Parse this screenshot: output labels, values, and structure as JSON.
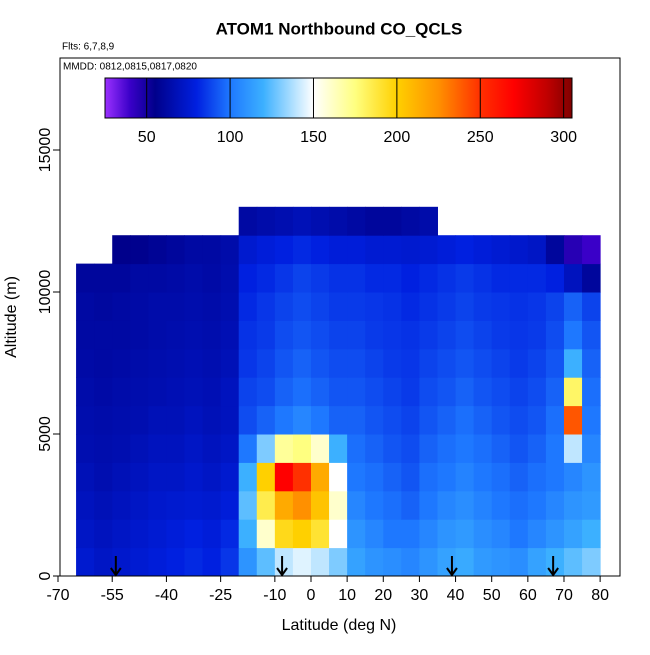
{
  "chart_data": {
    "type": "heatmap",
    "title": "ATOM1 Northbound CO_QCLS",
    "subtitle": "Flts: 6,7,8,9",
    "annotation": "MMDD: 0812,0815,0817,0820",
    "x_label": "Latitude (deg N)",
    "y_label": "Altitude (m)",
    "xlim": [
      -70,
      85.5
    ],
    "ylim": [
      0,
      18240
    ],
    "xticks": [
      -70,
      -55,
      -40,
      -25,
      -10,
      0,
      10,
      20,
      30,
      40,
      50,
      60,
      70,
      80
    ],
    "yticks": [
      0,
      5000,
      10000,
      15000
    ],
    "x_edges": [
      -65,
      -60,
      -55,
      -50,
      -45,
      -40,
      -35,
      -30,
      -25,
      -20,
      -15,
      -10,
      -5,
      0,
      5,
      10,
      15,
      20,
      25,
      30,
      35,
      40,
      45,
      50,
      55,
      60,
      65,
      70,
      75,
      80
    ],
    "y_edges": [
      0,
      1000,
      2000,
      3000,
      4000,
      5000,
      6000,
      7000,
      8000,
      9000,
      10000,
      11000,
      12000,
      13000
    ],
    "values": [
      [
        75,
        72,
        74,
        76,
        78,
        80,
        82,
        80,
        85,
        110,
        125,
        140,
        145,
        140,
        130,
        115,
        110,
        108,
        105,
        110,
        115,
        118,
        112,
        110,
        108,
        115,
        120,
        125,
        130
      ],
      [
        72,
        70,
        72,
        74,
        76,
        78,
        80,
        78,
        82,
        120,
        160,
        195,
        200,
        190,
        150,
        110,
        105,
        100,
        100,
        105,
        110,
        112,
        108,
        105,
        100,
        105,
        110,
        115,
        120
      ],
      [
        70,
        68,
        70,
        72,
        74,
        75,
        76,
        75,
        78,
        125,
        185,
        215,
        225,
        205,
        160,
        105,
        100,
        98,
        95,
        100,
        105,
        108,
        104,
        100,
        98,
        100,
        105,
        110,
        112
      ],
      [
        68,
        66,
        68,
        70,
        72,
        72,
        74,
        72,
        75,
        120,
        200,
        270,
        250,
        215,
        150,
        100,
        98,
        95,
        92,
        98,
        100,
        104,
        100,
        98,
        95,
        98,
        100,
        105,
        110
      ],
      [
        66,
        65,
        66,
        68,
        70,
        70,
        72,
        70,
        72,
        100,
        130,
        170,
        175,
        160,
        120,
        98,
        95,
        92,
        90,
        95,
        98,
        100,
        98,
        95,
        92,
        95,
        100,
        140,
        105
      ],
      [
        65,
        64,
        65,
        66,
        68,
        68,
        70,
        68,
        70,
        90,
        95,
        100,
        105,
        100,
        95,
        95,
        92,
        90,
        88,
        92,
        95,
        98,
        95,
        92,
        90,
        92,
        98,
        240,
        100
      ],
      [
        64,
        63,
        64,
        65,
        66,
        67,
        68,
        67,
        70,
        88,
        90,
        95,
        98,
        95,
        92,
        92,
        90,
        88,
        86,
        90,
        92,
        95,
        92,
        90,
        88,
        90,
        95,
        180,
        98
      ],
      [
        63,
        62,
        63,
        64,
        65,
        66,
        67,
        66,
        68,
        85,
        88,
        92,
        95,
        92,
        90,
        90,
        88,
        86,
        85,
        88,
        90,
        92,
        90,
        88,
        86,
        88,
        92,
        120,
        95
      ],
      [
        62,
        62,
        62,
        63,
        64,
        65,
        66,
        65,
        67,
        84,
        86,
        90,
        92,
        90,
        88,
        88,
        86,
        85,
        84,
        86,
        88,
        90,
        88,
        86,
        85,
        86,
        90,
        100,
        92
      ],
      [
        62,
        61,
        62,
        63,
        64,
        64,
        65,
        64,
        66,
        82,
        85,
        88,
        90,
        88,
        86,
        86,
        85,
        84,
        82,
        84,
        86,
        88,
        86,
        85,
        84,
        85,
        88,
        95,
        88
      ],
      [
        60,
        60,
        60,
        62,
        62,
        63,
        64,
        63,
        65,
        80,
        82,
        85,
        88,
        86,
        84,
        84,
        82,
        82,
        80,
        82,
        84,
        86,
        84,
        82,
        82,
        82,
        80,
        70,
        60
      ],
      [
        null,
        null,
        55,
        56,
        58,
        60,
        62,
        62,
        64,
        75,
        78,
        80,
        82,
        80,
        78,
        78,
        76,
        76,
        75,
        76,
        78,
        80,
        78,
        76,
        74,
        72,
        60,
        45,
        40
      ],
      [
        null,
        null,
        null,
        null,
        null,
        null,
        null,
        null,
        null,
        62,
        64,
        66,
        68,
        66,
        64,
        62,
        60,
        60,
        62,
        64,
        null,
        null,
        null,
        null,
        null,
        null,
        null,
        null,
        null
      ]
    ],
    "colorbar": {
      "lim": [
        25,
        305
      ],
      "ticks": [
        50,
        100,
        150,
        200,
        250,
        300
      ],
      "stops": [
        [
          25,
          "#9b30ff"
        ],
        [
          40,
          "#3a00c8"
        ],
        [
          55,
          "#00008b"
        ],
        [
          80,
          "#0020e0"
        ],
        [
          100,
          "#1e78ff"
        ],
        [
          120,
          "#3cb0ff"
        ],
        [
          140,
          "#bfe6ff"
        ],
        [
          150,
          "#ffffff"
        ],
        [
          175,
          "#ffff80"
        ],
        [
          200,
          "#ffd000"
        ],
        [
          225,
          "#ff9000"
        ],
        [
          250,
          "#ff3000"
        ],
        [
          270,
          "#ff0000"
        ],
        [
          290,
          "#c00000"
        ],
        [
          305,
          "#800000"
        ]
      ]
    },
    "arrow_latitudes": [
      -54,
      -8,
      39,
      67
    ]
  }
}
